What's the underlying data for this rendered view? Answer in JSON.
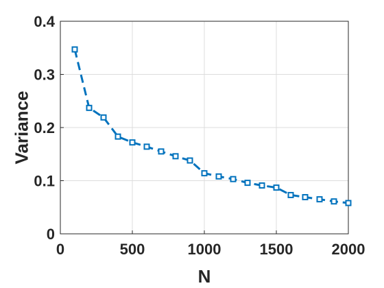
{
  "chart_data": {
    "type": "line",
    "title": "",
    "xlabel": "N",
    "ylabel": "Variance",
    "xlim": [
      0,
      2000
    ],
    "ylim": [
      0,
      0.4
    ],
    "grid": true,
    "x_ticks": [
      "0",
      "500",
      "1000",
      "1500",
      "2000"
    ],
    "y_ticks": [
      "0",
      "0.1",
      "0.2",
      "0.3",
      "0.4"
    ],
    "x_tick_values": [
      0,
      500,
      1000,
      1500,
      2000
    ],
    "y_tick_values": [
      0,
      0.1,
      0.2,
      0.3,
      0.4
    ],
    "series": [
      {
        "line_style": "dashed",
        "marker": "square",
        "color": "#0072BD",
        "x": [
          100,
          200,
          300,
          400,
          500,
          600,
          700,
          800,
          900,
          1000,
          1100,
          1200,
          1300,
          1400,
          1500,
          1600,
          1700,
          1800,
          1900,
          2000
        ],
        "y": [
          0.347,
          0.237,
          0.219,
          0.183,
          0.172,
          0.164,
          0.155,
          0.146,
          0.138,
          0.114,
          0.108,
          0.103,
          0.096,
          0.091,
          0.087,
          0.073,
          0.069,
          0.065,
          0.061,
          0.058
        ]
      }
    ]
  }
}
